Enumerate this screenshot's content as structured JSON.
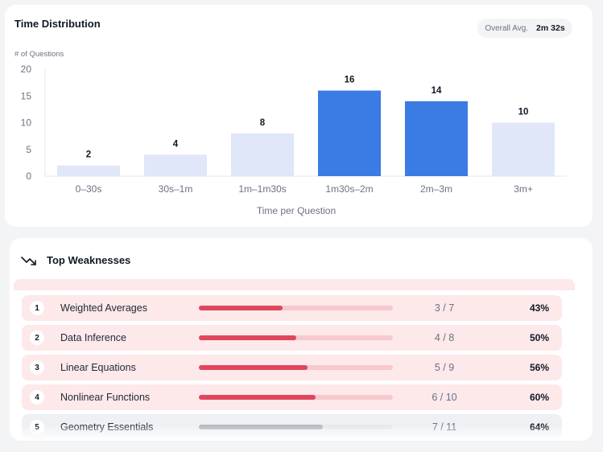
{
  "time_distribution": {
    "title": "Time Distribution",
    "overall_avg_label": "Overall Avg.",
    "overall_avg_value": "2m 32s"
  },
  "chart_data": {
    "type": "bar",
    "ylabel": "# of Questions",
    "xlabel": "Time per Question",
    "categories": [
      "0–30s",
      "30s–1m",
      "1m–1m30s",
      "1m30s–2m",
      "2m–3m",
      "3m+"
    ],
    "values": [
      2,
      4,
      8,
      16,
      14,
      10
    ],
    "highlighted": [
      false,
      false,
      false,
      true,
      true,
      false
    ],
    "yticks": [
      0,
      5,
      10,
      15,
      20
    ],
    "ylim": [
      0,
      20
    ],
    "colors": {
      "normal": "#dfe7f8",
      "highlight": "#3b7be4"
    }
  },
  "weaknesses": {
    "title": "Top Weaknesses",
    "icon": "trending-down-icon",
    "items": [
      {
        "rank": "1",
        "topic": "Weighted Averages",
        "score": "3 / 7",
        "percent": "43%",
        "progress": 0.43,
        "style": "weak"
      },
      {
        "rank": "2",
        "topic": "Data Inference",
        "score": "4 / 8",
        "percent": "50%",
        "progress": 0.5,
        "style": "weak"
      },
      {
        "rank": "3",
        "topic": "Linear Equations",
        "score": "5 / 9",
        "percent": "56%",
        "progress": 0.56,
        "style": "weak"
      },
      {
        "rank": "4",
        "topic": "Nonlinear Functions",
        "score": "6 / 10",
        "percent": "60%",
        "progress": 0.6,
        "style": "weak"
      },
      {
        "rank": "5",
        "topic": "Geometry Essentials",
        "score": "7 / 11",
        "percent": "64%",
        "progress": 0.64,
        "style": "neutral"
      }
    ]
  }
}
